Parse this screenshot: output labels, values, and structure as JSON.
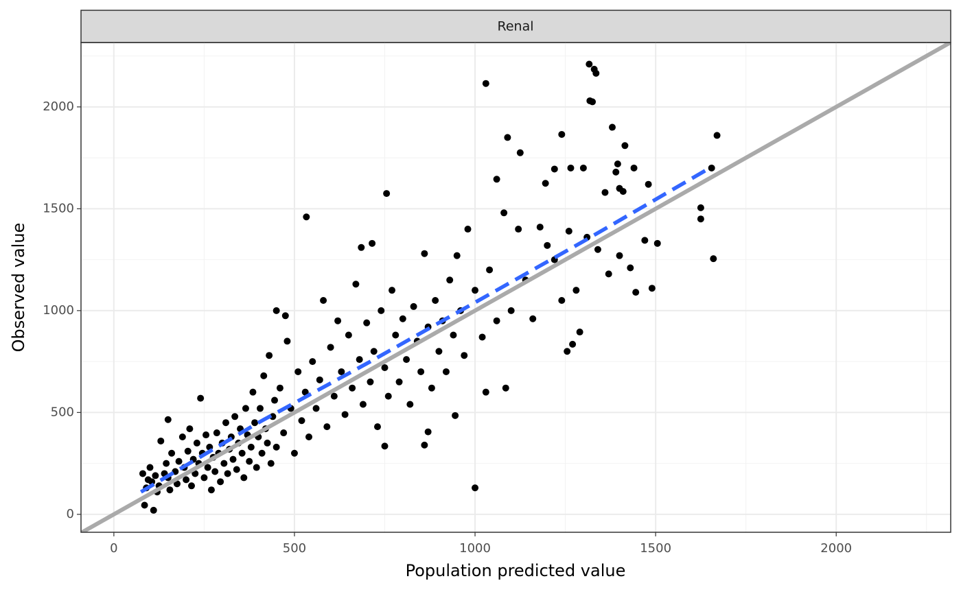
{
  "chart_data": {
    "type": "scatter",
    "panel_title": "Renal",
    "x_label": "Population predicted value",
    "y_label": "Observed value",
    "color": "#000000",
    "xlim": [
      -91,
      2317
    ],
    "ylim": [
      -88,
      2316
    ],
    "xticks": [
      0,
      500,
      1000,
      1500,
      2000
    ],
    "yticks": [
      0,
      500,
      1000,
      1500,
      2000
    ],
    "grid": true,
    "x": [
      1030,
      1316,
      1330,
      1335,
      1318,
      1325,
      1380,
      1670,
      1240,
      1090,
      1125,
      1415,
      1060,
      755,
      533,
      1000,
      1655,
      1625,
      1625,
      1660,
      1505,
      1490,
      1445,
      1470,
      1480,
      1395,
      1390,
      1440,
      1400,
      1410,
      1360,
      1300,
      1265,
      1220,
      1195,
      1290,
      1255,
      1270,
      1030,
      1085,
      945,
      860,
      870,
      750,
      110,
      85,
      240,
      150,
      450,
      475,
      685,
      715,
      80,
      90,
      95,
      100,
      105,
      115,
      120,
      125,
      130,
      140,
      145,
      150,
      155,
      160,
      170,
      175,
      180,
      190,
      195,
      200,
      205,
      210,
      215,
      220,
      225,
      230,
      235,
      245,
      250,
      255,
      260,
      265,
      270,
      275,
      280,
      285,
      290,
      295,
      300,
      305,
      310,
      315,
      320,
      325,
      330,
      335,
      340,
      345,
      350,
      355,
      360,
      365,
      370,
      375,
      380,
      385,
      390,
      395,
      400,
      405,
      410,
      415,
      420,
      425,
      430,
      435,
      440,
      445,
      450,
      460,
      470,
      480,
      490,
      500,
      510,
      520,
      530,
      540,
      550,
      560,
      570,
      580,
      590,
      600,
      610,
      620,
      630,
      640,
      650,
      660,
      670,
      680,
      690,
      700,
      710,
      720,
      730,
      740,
      750,
      760,
      770,
      780,
      790,
      800,
      810,
      820,
      830,
      840,
      850,
      860,
      870,
      880,
      890,
      900,
      910,
      920,
      930,
      940,
      950,
      960,
      970,
      980,
      1000,
      1020,
      1040,
      1060,
      1080,
      1100,
      1120,
      1140,
      1160,
      1180,
      1200,
      1220,
      1240,
      1260,
      1280,
      1310,
      1340,
      1370,
      1400,
      1430
    ],
    "values": [
      2115,
      2210,
      2185,
      2165,
      2030,
      2025,
      1900,
      1860,
      1865,
      1850,
      1775,
      1810,
      1645,
      1575,
      1460,
      130,
      1700,
      1505,
      1450,
      1255,
      1330,
      1110,
      1090,
      1345,
      1620,
      1720,
      1680,
      1700,
      1600,
      1585,
      1580,
      1700,
      1700,
      1695,
      1625,
      895,
      800,
      835,
      600,
      620,
      485,
      340,
      405,
      335,
      20,
      45,
      570,
      465,
      1000,
      975,
      1310,
      1330,
      200,
      130,
      170,
      230,
      160,
      190,
      110,
      140,
      360,
      200,
      250,
      180,
      120,
      300,
      210,
      150,
      260,
      380,
      230,
      170,
      310,
      420,
      140,
      270,
      200,
      350,
      250,
      300,
      180,
      390,
      230,
      330,
      120,
      280,
      210,
      400,
      300,
      160,
      350,
      250,
      450,
      200,
      320,
      380,
      270,
      480,
      220,
      350,
      420,
      300,
      180,
      520,
      390,
      260,
      330,
      600,
      450,
      230,
      380,
      520,
      300,
      680,
      420,
      350,
      780,
      250,
      480,
      560,
      330,
      620,
      400,
      850,
      520,
      300,
      700,
      460,
      600,
      380,
      750,
      520,
      660,
      1050,
      430,
      820,
      580,
      950,
      700,
      490,
      880,
      620,
      1130,
      760,
      540,
      940,
      650,
      800,
      430,
      1000,
      720,
      580,
      1100,
      880,
      650,
      960,
      760,
      540,
      1020,
      850,
      700,
      1280,
      920,
      620,
      1050,
      800,
      950,
      700,
      1150,
      880,
      1270,
      1000,
      780,
      1400,
      1100,
      870,
      1200,
      950,
      1480,
      1000,
      1400,
      1150,
      960,
      1410,
      1320,
      1250,
      1050,
      1390,
      1100,
      1360,
      1300,
      1180,
      1270,
      1210
    ],
    "trend": {
      "color": "#3366ff",
      "x": [
        75,
        400,
        700,
        1000,
        1300,
        1650
      ],
      "values": [
        110,
        450,
        740,
        1040,
        1340,
        1700
      ]
    },
    "reference_line": {
      "color": "#aaaaaa",
      "slope": 1,
      "intercept": 0
    }
  }
}
